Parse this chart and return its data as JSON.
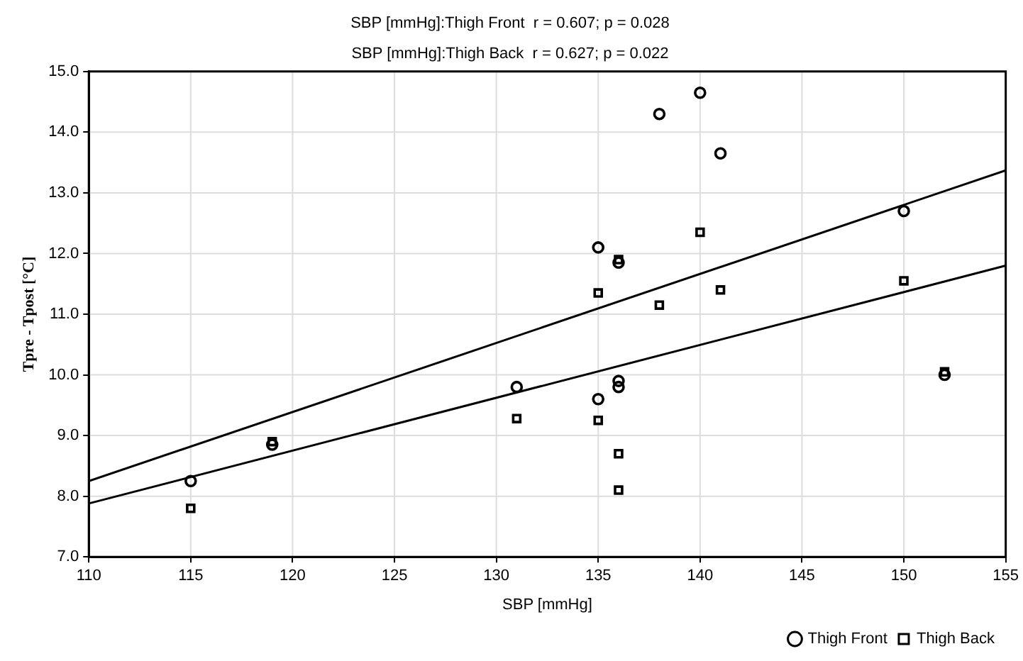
{
  "chart_data": {
    "type": "scatter",
    "title": "SBP [mmHg]:Thigh Front  r = 0.607; p = 0.028",
    "subtitle": "SBP [mmHg]:Thigh Back  r = 0.627; p = 0.022",
    "xlabel": "SBP [mmHg]",
    "ylabel": "Tpre - Tpost [°C]",
    "xlim": [
      110,
      155
    ],
    "xticks": [
      110,
      115,
      120,
      125,
      130,
      135,
      140,
      145,
      150,
      155
    ],
    "ylim": [
      7,
      15
    ],
    "yticks": [
      {
        "value": 7,
        "label": "7.0"
      },
      {
        "value": 8,
        "label": "8.0"
      },
      {
        "value": 9,
        "label": "9.0"
      },
      {
        "value": 10,
        "label": "10.0"
      },
      {
        "value": 11,
        "label": "11.0"
      },
      {
        "value": 12,
        "label": "12.0"
      },
      {
        "value": 13,
        "label": "13.0"
      },
      {
        "value": 14,
        "label": "14.0"
      },
      {
        "value": 15,
        "label": "15.0"
      }
    ],
    "grid": true,
    "legend": "bottom right",
    "series": [
      {
        "name": "Thigh Front",
        "color": "#000000",
        "marker": "circle",
        "x": [
          115,
          119,
          131,
          135,
          135,
          136,
          136,
          136,
          138,
          140,
          141,
          150,
          152
        ],
        "values": [
          8.25,
          8.85,
          9.8,
          12.1,
          9.6,
          11.85,
          9.9,
          9.8,
          14.3,
          14.65,
          13.65,
          12.7,
          10.0
        ]
      },
      {
        "name": "Thigh Back",
        "color": "#000000",
        "marker": "square",
        "x": [
          115,
          119,
          131,
          135,
          135,
          136,
          136,
          136,
          138,
          140,
          141,
          150,
          152
        ],
        "values": [
          7.8,
          8.9,
          9.28,
          11.35,
          9.25,
          11.9,
          8.7,
          8.1,
          11.15,
          12.35,
          11.4,
          11.55,
          10.05
        ]
      },
      {
        "type": "line",
        "color": "#000000",
        "line_style": "solid",
        "marker": "none",
        "x": [
          110,
          155
        ],
        "values": [
          8.25,
          13.37
        ]
      },
      {
        "type": "line",
        "color": "#000000",
        "line_style": "solid",
        "marker": "none",
        "x": [
          110,
          155
        ],
        "values": [
          7.88,
          11.8
        ]
      }
    ]
  }
}
